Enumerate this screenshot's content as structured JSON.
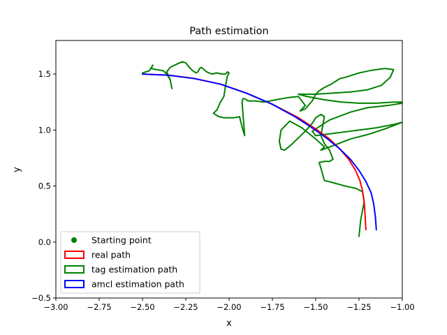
{
  "chart_data": {
    "type": "line",
    "title": "Path estimation",
    "xlabel": "x",
    "ylabel": "y",
    "xlim": [
      -3.0,
      -1.0
    ],
    "ylim": [
      -0.5,
      1.8
    ],
    "xticks": [
      {
        "value": -3.0,
        "label": "−3.00"
      },
      {
        "value": -2.75,
        "label": "−2.75"
      },
      {
        "value": -2.5,
        "label": "−2.50"
      },
      {
        "value": -2.25,
        "label": "−2.25"
      },
      {
        "value": -2.0,
        "label": "−2.00"
      },
      {
        "value": -1.75,
        "label": "−1.75"
      },
      {
        "value": -1.5,
        "label": "−1.50"
      },
      {
        "value": -1.25,
        "label": "−1.25"
      },
      {
        "value": -1.0,
        "label": "−1.00"
      }
    ],
    "yticks": [
      {
        "value": -0.5,
        "label": "−0.5"
      },
      {
        "value": 0.0,
        "label": "0.0"
      },
      {
        "value": 0.5,
        "label": "0.5"
      },
      {
        "value": 1.0,
        "label": "1.0"
      },
      {
        "value": 1.5,
        "label": "1.5"
      }
    ],
    "grid": false,
    "legend_position": "lower-left",
    "legend": [
      {
        "label": "Starting point",
        "kind": "marker",
        "color": "#008000"
      },
      {
        "label": "real path",
        "kind": "patch",
        "color": "#ff0000"
      },
      {
        "label": "tag estimation path",
        "kind": "patch",
        "color": "#008000"
      },
      {
        "label": "amcl estimation path",
        "kind": "patch",
        "color": "#0000ff"
      }
    ],
    "series": [
      {
        "name": "tag estimation path",
        "color": "#008000",
        "x": [
          -2.5,
          -2.46,
          -2.44,
          -2.45,
          -2.42,
          -2.38,
          -2.36,
          -2.34,
          -2.33,
          -2.34,
          -2.36,
          -2.34,
          -2.3,
          -2.27,
          -2.25,
          -2.23,
          -2.21,
          -2.19,
          -2.18,
          -2.17,
          -2.16,
          -2.13,
          -2.1,
          -2.07,
          -2.04,
          -2.02,
          -2.01,
          -2.0,
          -2.01,
          -2.02,
          -2.03,
          -2.05,
          -2.07,
          -2.09,
          -2.06,
          -2.03,
          -2.0,
          -1.97,
          -1.94,
          -1.92,
          -1.91,
          -1.915,
          -1.92,
          -1.925,
          -1.92,
          -1.91,
          -1.89,
          -1.85,
          -1.8,
          -1.73,
          -1.66,
          -1.6,
          -1.56,
          -1.59,
          -1.56,
          -1.52,
          -1.5,
          -1.48,
          -1.45,
          -1.41,
          -1.38,
          -1.36,
          -1.33,
          -1.29,
          -1.25,
          -1.22,
          -1.19,
          -1.15,
          -1.1,
          -1.05,
          -1.07,
          -1.12,
          -1.2,
          -1.3,
          -1.4,
          -1.5,
          -1.6,
          -1.55,
          -1.45,
          -1.35,
          -1.25,
          -1.15,
          -1.05,
          -1.0,
          -1.02,
          -1.0,
          -1.08,
          -1.2,
          -1.3,
          -1.42,
          -1.48,
          -1.52,
          -1.5,
          -1.45,
          -1.35,
          -1.25,
          -1.15,
          -1.05,
          -1.0,
          -1.1,
          -1.2,
          -1.3,
          -1.4,
          -1.47,
          -1.45,
          -1.5,
          -1.58,
          -1.65,
          -1.7,
          -1.71,
          -1.7,
          -1.68,
          -1.64,
          -1.6,
          -1.56,
          -1.52,
          -1.5,
          -1.47,
          -1.45,
          -1.46,
          -1.47,
          -1.45,
          -1.42,
          -1.4,
          -1.42,
          -1.45,
          -1.48,
          -1.47,
          -1.45,
          -1.4,
          -1.33,
          -1.27,
          -1.23,
          -1.22,
          -1.24,
          -1.25
        ],
        "y": [
          1.51,
          1.53,
          1.58,
          1.55,
          1.54,
          1.53,
          1.5,
          1.45,
          1.37,
          1.45,
          1.52,
          1.56,
          1.59,
          1.61,
          1.6,
          1.56,
          1.53,
          1.51,
          1.52,
          1.55,
          1.56,
          1.52,
          1.5,
          1.51,
          1.5,
          1.5,
          1.52,
          1.51,
          1.48,
          1.4,
          1.3,
          1.25,
          1.18,
          1.15,
          1.12,
          1.11,
          1.11,
          1.11,
          1.12,
          1.0,
          0.95,
          1.05,
          1.15,
          1.25,
          1.28,
          1.28,
          1.26,
          1.26,
          1.25,
          1.27,
          1.29,
          1.3,
          1.22,
          1.17,
          1.19,
          1.26,
          1.32,
          1.35,
          1.38,
          1.41,
          1.44,
          1.46,
          1.47,
          1.49,
          1.51,
          1.52,
          1.53,
          1.54,
          1.55,
          1.54,
          1.47,
          1.4,
          1.36,
          1.34,
          1.33,
          1.32,
          1.32,
          1.3,
          1.27,
          1.25,
          1.24,
          1.24,
          1.25,
          1.25,
          1.24,
          1.24,
          1.22,
          1.2,
          1.16,
          1.09,
          1.03,
          0.99,
          0.95,
          0.96,
          0.98,
          1.0,
          1.02,
          1.05,
          1.07,
          1.01,
          0.96,
          0.92,
          0.86,
          0.82,
          0.85,
          0.92,
          1.02,
          1.08,
          1.0,
          0.9,
          0.83,
          0.82,
          0.87,
          0.93,
          0.99,
          1.06,
          1.11,
          1.14,
          1.12,
          1.03,
          0.95,
          0.88,
          0.82,
          0.74,
          0.72,
          0.72,
          0.71,
          0.66,
          0.55,
          0.53,
          0.5,
          0.48,
          0.45,
          0.36,
          0.2,
          0.05
        ]
      },
      {
        "name": "real path",
        "color": "#ff0000",
        "x": [
          -2.5,
          -2.35,
          -2.2,
          -2.05,
          -1.9,
          -1.75,
          -1.6,
          -1.5,
          -1.42,
          -1.36,
          -1.31,
          -1.27,
          -1.245,
          -1.23,
          -1.22,
          -1.215,
          -1.21
        ],
        "y": [
          1.5,
          1.49,
          1.46,
          1.41,
          1.33,
          1.23,
          1.11,
          1.01,
          0.92,
          0.83,
          0.74,
          0.64,
          0.55,
          0.46,
          0.36,
          0.24,
          0.11
        ]
      },
      {
        "name": "amcl estimation path",
        "color": "#0000ff",
        "x": [
          -2.5,
          -2.35,
          -2.2,
          -2.05,
          -1.9,
          -1.75,
          -1.62,
          -1.52,
          -1.43,
          -1.36,
          -1.3,
          -1.25,
          -1.21,
          -1.18,
          -1.165,
          -1.155,
          -1.15
        ],
        "y": [
          1.5,
          1.49,
          1.46,
          1.41,
          1.33,
          1.23,
          1.12,
          1.02,
          0.92,
          0.83,
          0.74,
          0.64,
          0.54,
          0.44,
          0.34,
          0.22,
          0.11
        ]
      }
    ]
  }
}
